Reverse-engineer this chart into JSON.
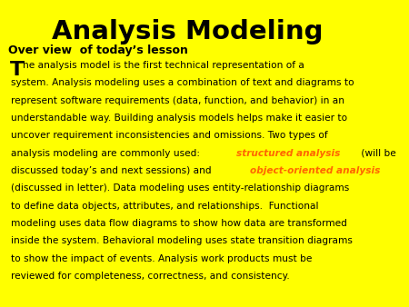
{
  "title": "Analysis Modeling",
  "subtitle": "Over view  of today’s lesson",
  "background_color": "#FFFF00",
  "title_color": "#000000",
  "subtitle_color": "#000000",
  "body_color": "#000000",
  "highlight_color": "#FF6600",
  "figsize": [
    4.5,
    3.38
  ],
  "dpi": 100,
  "title_fontsize": 21,
  "subtitle_fontsize": 9,
  "body_fontsize": 7.6,
  "drop_cap_fontsize": 16,
  "lines": [
    {
      "type": "normal",
      "text": "he analysis model is the first technical representation of a"
    },
    {
      "type": "normal",
      "text": "system. Analysis modeling uses a combination of text and diagrams to"
    },
    {
      "type": "normal",
      "text": "represent software requirements (data, function, and behavior) in an"
    },
    {
      "type": "normal",
      "text": "understandable way. Building analysis models helps make it easier to"
    },
    {
      "type": "normal",
      "text": "uncover requirement inconsistencies and omissions. Two types of"
    },
    {
      "type": "mixed",
      "segments": [
        {
          "text": "analysis modeling are commonly used: ",
          "style": "normal"
        },
        {
          "text": "structured analysis",
          "style": "highlight_italic"
        },
        {
          "text": " (will be",
          "style": "normal"
        }
      ]
    },
    {
      "type": "mixed",
      "segments": [
        {
          "text": "discussed today’s and next sessions) and ",
          "style": "normal"
        },
        {
          "text": "object-oriented analysis",
          "style": "highlight_italic"
        }
      ]
    },
    {
      "type": "normal",
      "text": "(discussed in letter). Data modeling uses entity-relationship diagrams"
    },
    {
      "type": "normal",
      "text": "to define data objects, attributes, and relationships.  Functional"
    },
    {
      "type": "normal",
      "text": "modeling uses data flow diagrams to show how data are transformed"
    },
    {
      "type": "normal",
      "text": "inside the system. Behavioral modeling uses state transition diagrams"
    },
    {
      "type": "normal",
      "text": "to show the impact of events. Analysis work products must be"
    },
    {
      "type": "normal",
      "text": "reviewed for completeness, correctness, and consistency."
    }
  ]
}
